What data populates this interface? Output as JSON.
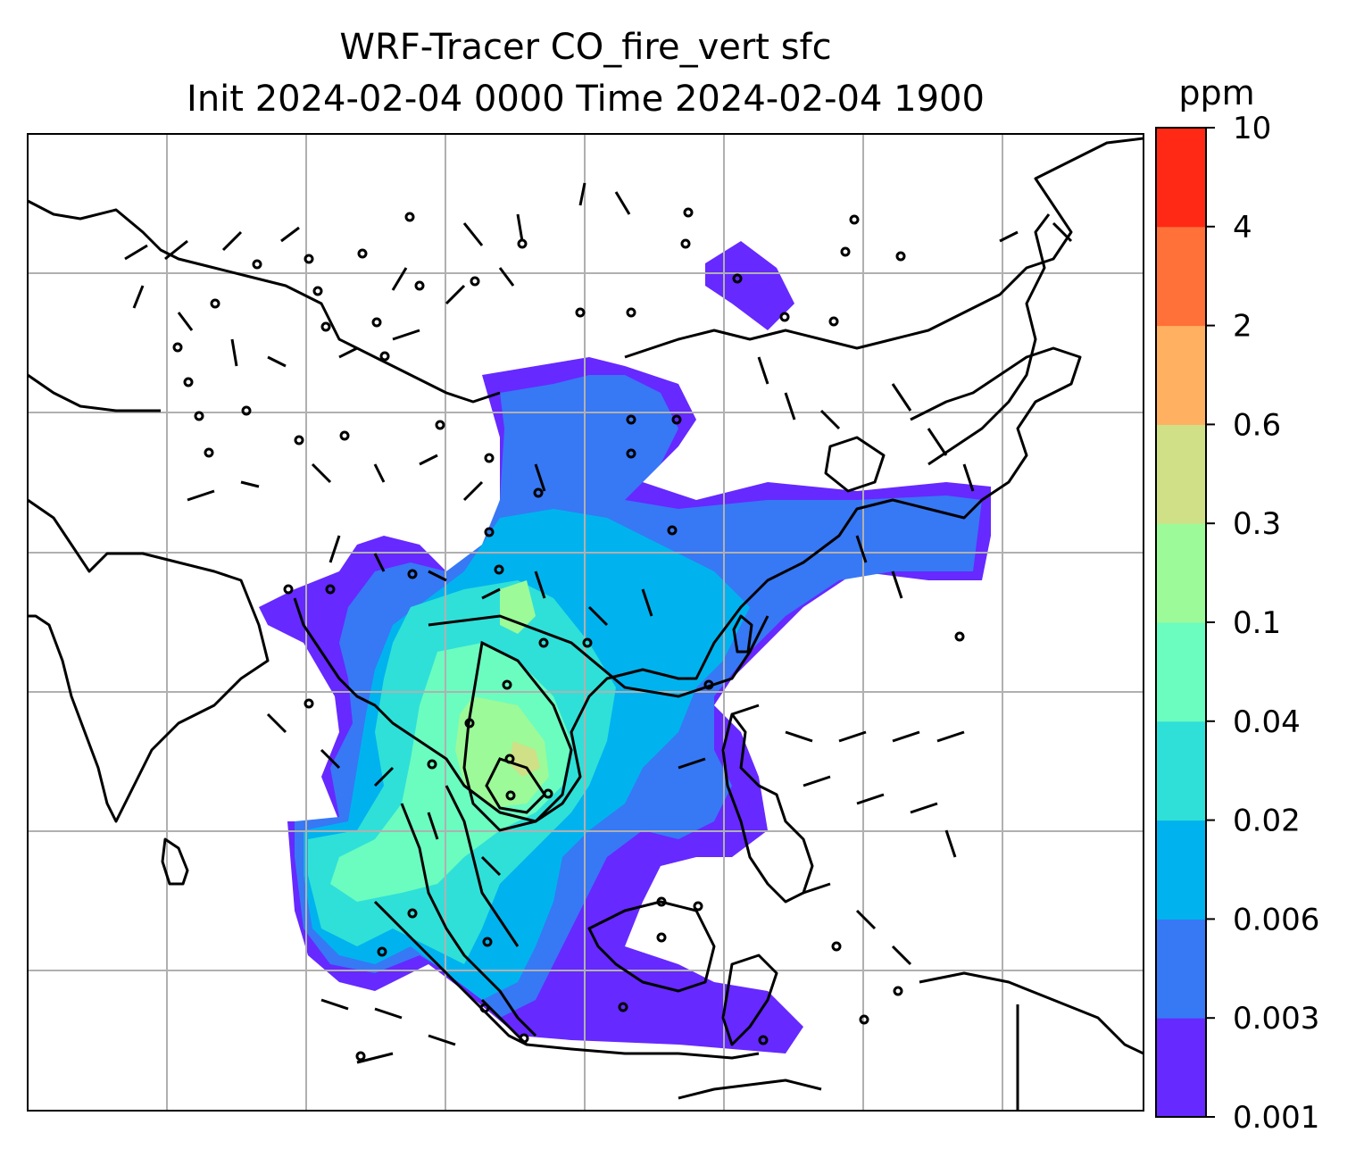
{
  "title": {
    "line1": "WRF-Tracer CO_fire_vert sfc",
    "line2": "Init 2024-02-04 0000 Time 2024-02-04 1900"
  },
  "colorbar": {
    "unit": "ppm",
    "levels": [
      "0.001",
      "0.003",
      "0.006",
      "0.02",
      "0.04",
      "0.1",
      "0.3",
      "0.6",
      "2",
      "4",
      "10"
    ],
    "colors": [
      "#6629ff",
      "#3778f5",
      "#00b3ee",
      "#2fe0d8",
      "#6bfcc0",
      "#9cfa98",
      "#cfe087",
      "#ffb061",
      "#ff7139",
      "#ff2915"
    ]
  },
  "map": {
    "background": "#ffffff",
    "gridlines": true,
    "grid_color": "#b0b0b0",
    "coastline_color": "#000000",
    "features": [
      "coastlines",
      "country-borders",
      "wind-barbs",
      "contour-lines",
      "filled-tracer-field"
    ]
  }
}
